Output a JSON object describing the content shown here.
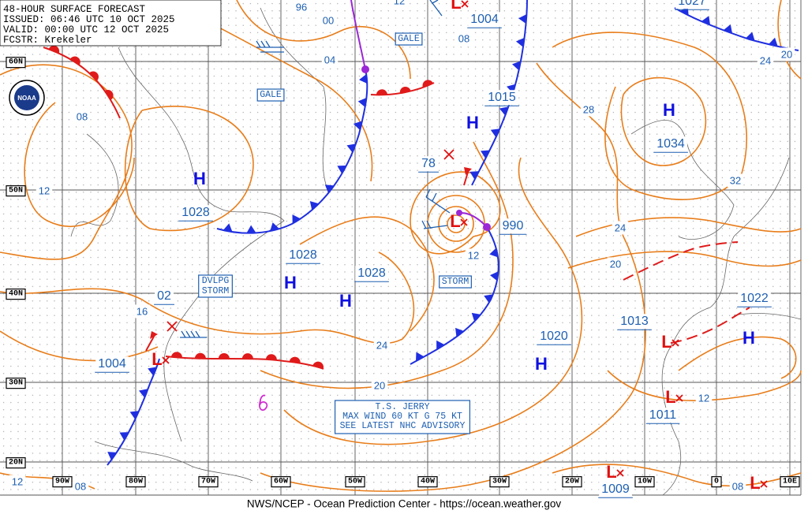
{
  "header": {
    "title": "48-HOUR SURFACE FORECAST",
    "issued": "ISSUED: 06:46 UTC 10 OCT 2025",
    "valid": "VALID:  00:00 UTC 12 OCT 2025",
    "forecaster": "FCSTR:  Krekeler"
  },
  "logo": "NOAA",
  "latitude_labels": [
    "60N",
    "50N",
    "40N",
    "30N",
    "20N"
  ],
  "longitude_labels": [
    "90W",
    "80W",
    "70W",
    "60W",
    "50W",
    "40W",
    "30W",
    "20W",
    "10W",
    "0",
    "10E"
  ],
  "highs": [
    {
      "symbol": "H",
      "pressure": "1028"
    },
    {
      "symbol": "H",
      "pressure": "1028"
    },
    {
      "symbol": "H",
      "pressure": "1028"
    },
    {
      "symbol": "H",
      "pressure": "1015"
    },
    {
      "symbol": "H",
      "pressure": "1034"
    },
    {
      "symbol": "H",
      "pressure": "1020"
    },
    {
      "symbol": "H",
      "pressure": "1022"
    }
  ],
  "lows": [
    {
      "symbol": "L",
      "pressure": "1004"
    },
    {
      "symbol": "L",
      "pressure": "990"
    },
    {
      "symbol": "L",
      "pressure": "1013"
    },
    {
      "symbol": "L",
      "pressure": "1011"
    },
    {
      "symbol": "L",
      "pressure": "1009"
    },
    {
      "symbol": "L",
      "pressure": "08"
    },
    {
      "symbol": "L",
      "pressure": "1004"
    }
  ],
  "other_pressures": [
    "1027",
    "02",
    "78"
  ],
  "isobar_labels": [
    "96",
    "00",
    "04",
    "08",
    "12",
    "16",
    "12",
    "24",
    "20",
    "28",
    "24",
    "20",
    "32",
    "24",
    "20",
    "12",
    "12",
    "08",
    "08",
    "12"
  ],
  "warnings": [
    "GALE",
    "GALE",
    "STORM"
  ],
  "developing_storm": [
    "DVLPG",
    "STORM"
  ],
  "advisory": [
    "T.S. JERRY",
    "MAX WIND 60 KT G 75 KT",
    "SEE LATEST NHC ADVISORY"
  ],
  "footer": "NWS/NCEP - Ocean Prediction Center - https://ocean.weather.gov"
}
